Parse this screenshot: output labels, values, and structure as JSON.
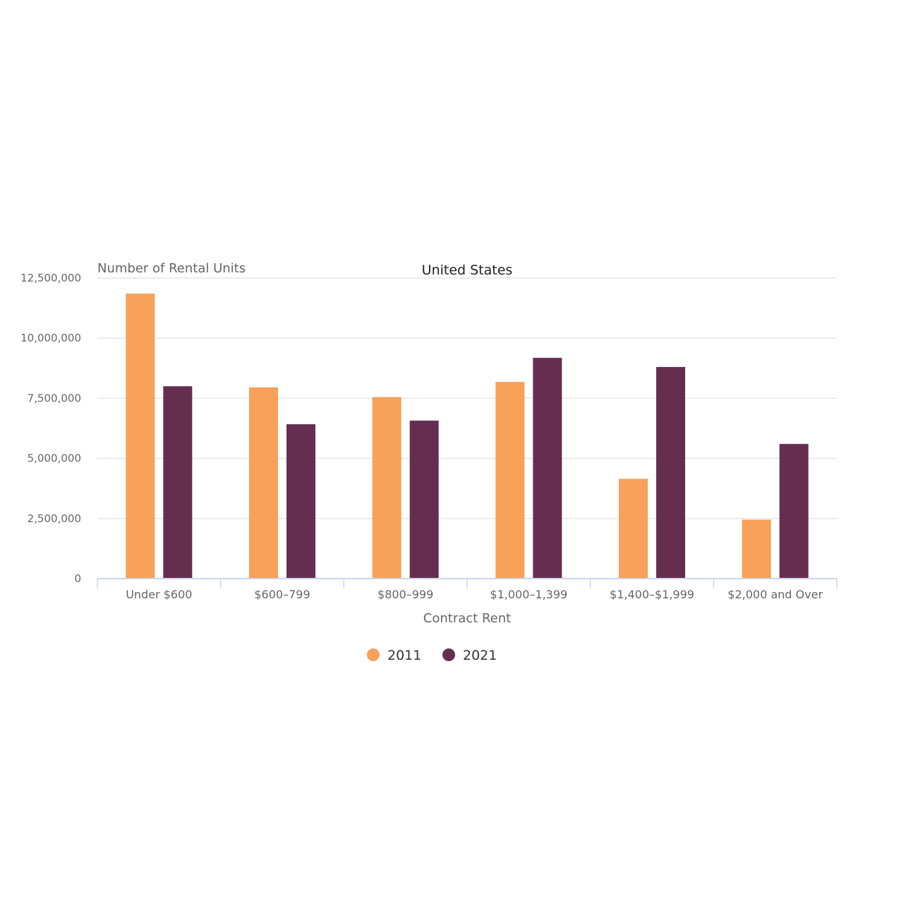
{
  "chart_data": {
    "type": "bar",
    "title": "United States",
    "ylabel": "Number of Rental Units",
    "xlabel": "Contract Rent",
    "categories": [
      "Under $600",
      "$600–799",
      "$800–999",
      "$1,000–1,399",
      "$1,400–$1,999",
      "$2,000 and Over"
    ],
    "series": [
      {
        "name": "2011",
        "color": "#f7a15a",
        "values": [
          11850000,
          7950000,
          7550000,
          8180000,
          4150000,
          2450000
        ]
      },
      {
        "name": "2021",
        "color": "#652e4f",
        "values": [
          8000000,
          6420000,
          6570000,
          9180000,
          8800000,
          5600000
        ]
      }
    ],
    "ylim": [
      0,
      12500000
    ],
    "yticks": [
      0,
      2500000,
      5000000,
      7500000,
      10000000,
      12500000
    ],
    "ytick_labels": [
      "0",
      "2,500,000",
      "5,000,000",
      "7,500,000",
      "10,000,000",
      "12,500,000"
    ],
    "grid": true,
    "legend_position": "bottom-center"
  }
}
